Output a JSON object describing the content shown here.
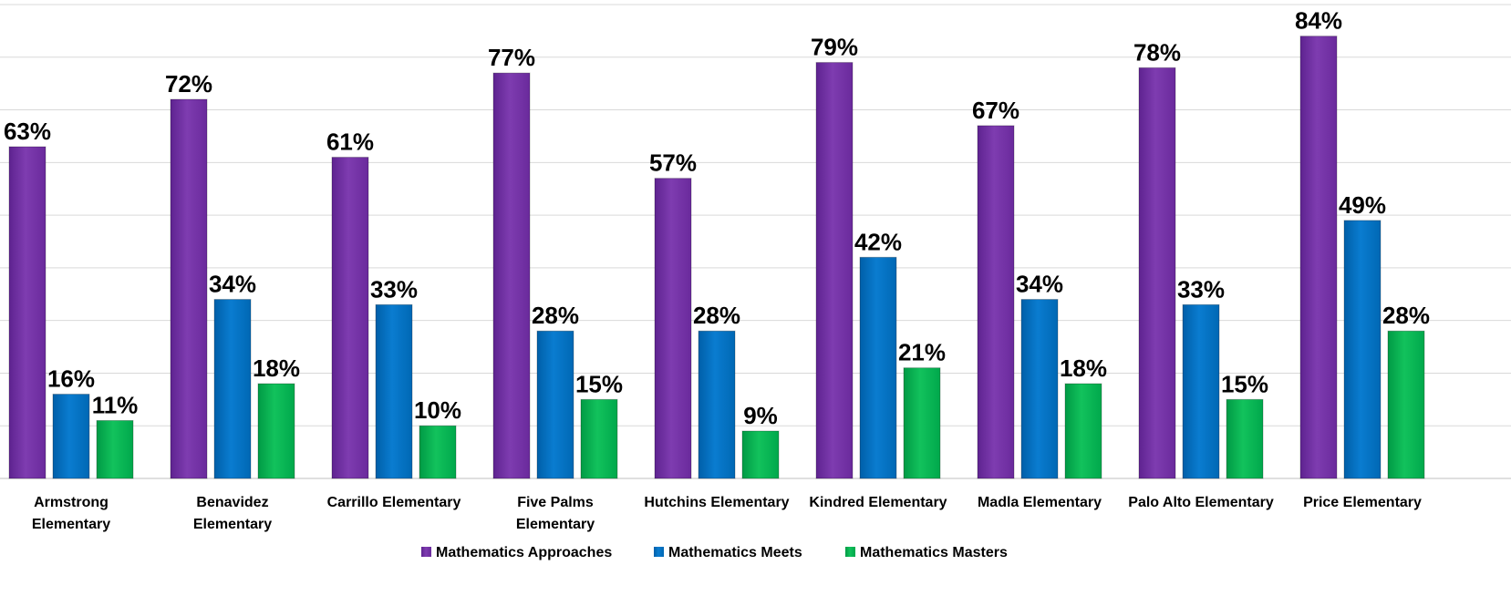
{
  "chart_data": {
    "type": "bar",
    "categories": [
      [
        "Armstrong",
        "Elementary"
      ],
      [
        "Benavidez",
        "Elementary"
      ],
      [
        "Carrillo Elementary"
      ],
      [
        "Five Palms",
        "Elementary"
      ],
      [
        "Hutchins Elementary"
      ],
      [
        "Kindred Elementary"
      ],
      [
        "Madla Elementary"
      ],
      [
        "Palo Alto Elementary"
      ],
      [
        "Price Elementary"
      ]
    ],
    "series": [
      {
        "name": "Mathematics Approaches",
        "color": "#7030A0",
        "values": [
          63,
          72,
          61,
          77,
          57,
          79,
          67,
          78,
          84
        ]
      },
      {
        "name": "Mathematics Meets",
        "color": "#0070C0",
        "values": [
          16,
          34,
          33,
          28,
          28,
          42,
          34,
          33,
          49
        ]
      },
      {
        "name": "Mathematics Masters",
        "color": "#00B050",
        "values": [
          11,
          18,
          10,
          15,
          9,
          21,
          18,
          15,
          28
        ]
      }
    ],
    "value_suffix": "%",
    "ylim": [
      0,
      90
    ],
    "grid": true,
    "legend_position": "bottom"
  }
}
